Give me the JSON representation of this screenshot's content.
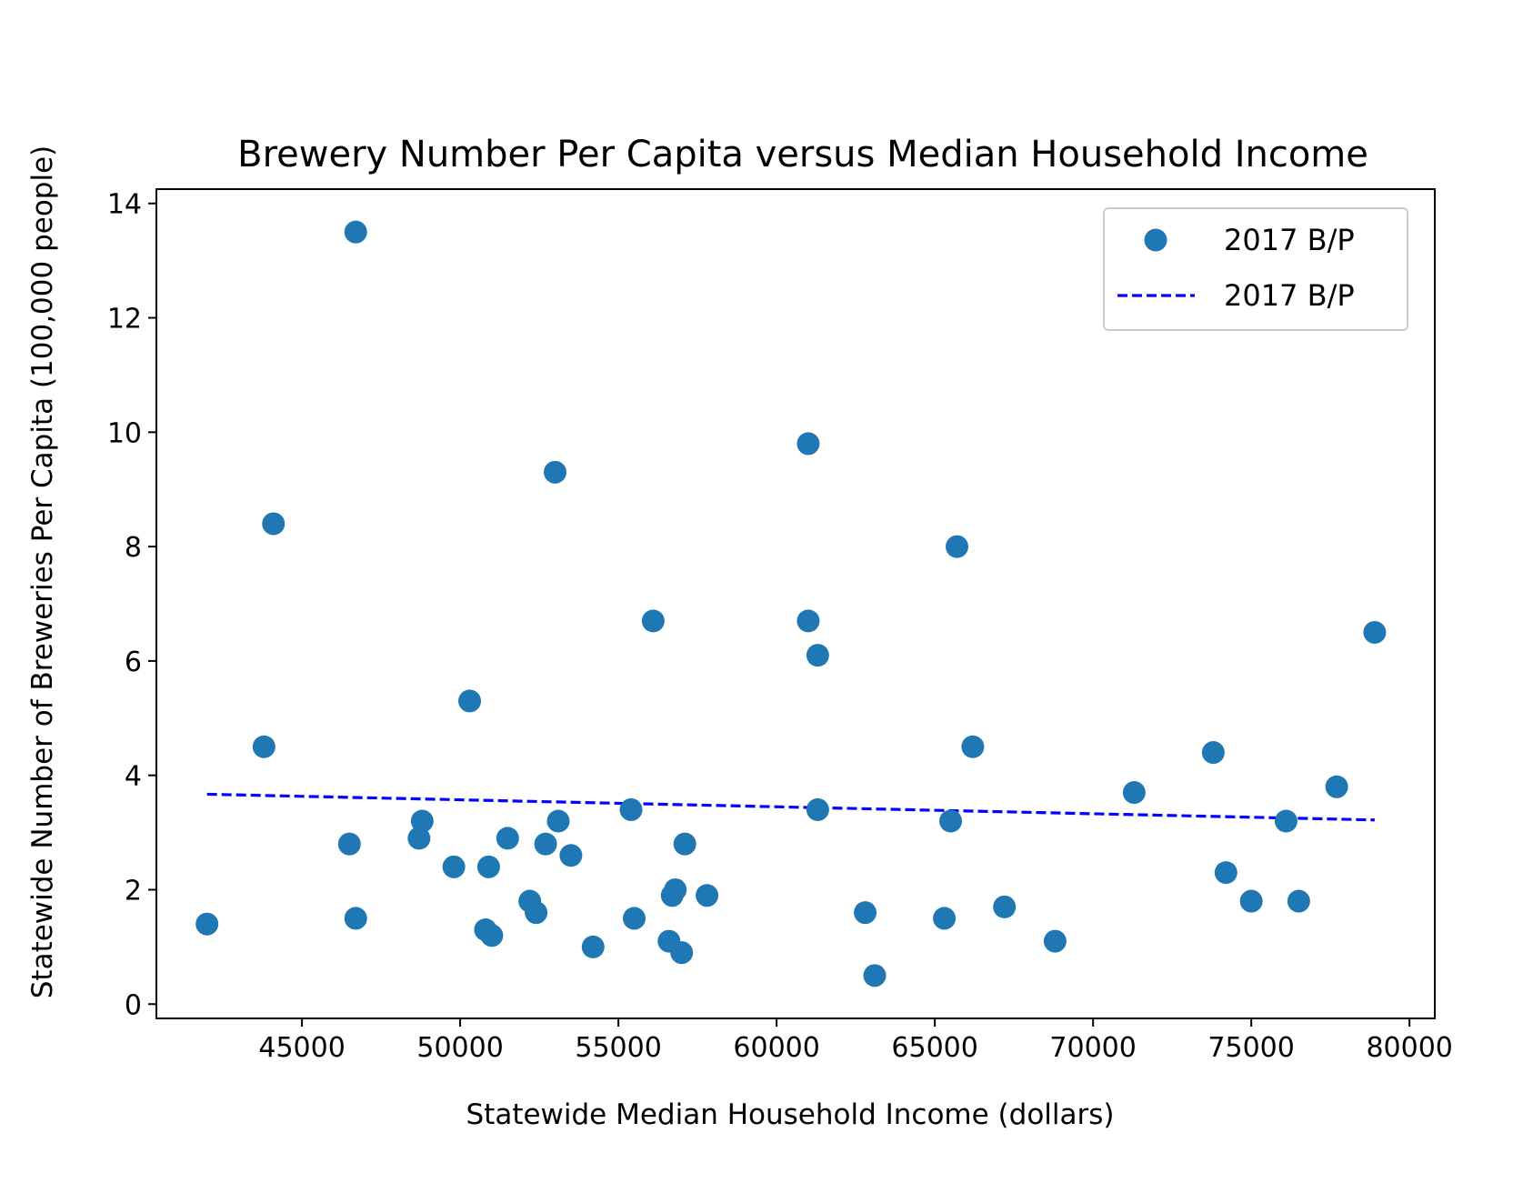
{
  "chart_data": {
    "type": "scatter",
    "title": "Brewery Number Per Capita versus Median Household Income",
    "xlabel": "Statewide Median Household Income (dollars)",
    "ylabel": "Statewide Number of Breweries Per Capita (100,000 people)",
    "xlim": [
      40400,
      80800
    ],
    "ylim": [
      -0.25,
      14.25
    ],
    "xticks": [
      45000,
      50000,
      55000,
      60000,
      65000,
      70000,
      75000,
      80000
    ],
    "xtick_labels": [
      "45000",
      "50000",
      "55000",
      "60000",
      "65000",
      "70000",
      "75000",
      "80000"
    ],
    "yticks": [
      0,
      2,
      4,
      6,
      8,
      10,
      12,
      14
    ],
    "ytick_labels": [
      "0",
      "2",
      "4",
      "6",
      "8",
      "10",
      "12",
      "14"
    ],
    "grid": false,
    "legend": "top-right",
    "colors": {
      "points": "#1f77b4",
      "trendline": "#0000ff"
    },
    "series": [
      {
        "name": "2017 B/P",
        "type": "scatter",
        "points": [
          [
            42000,
            1.4
          ],
          [
            43800,
            4.5
          ],
          [
            44100,
            8.4
          ],
          [
            46500,
            2.8
          ],
          [
            46700,
            13.5
          ],
          [
            46700,
            1.5
          ],
          [
            48700,
            2.9
          ],
          [
            48800,
            3.2
          ],
          [
            49800,
            2.4
          ],
          [
            50300,
            5.3
          ],
          [
            50800,
            1.3
          ],
          [
            50900,
            2.4
          ],
          [
            51000,
            1.2
          ],
          [
            51500,
            2.9
          ],
          [
            52200,
            1.8
          ],
          [
            52400,
            1.6
          ],
          [
            52700,
            2.8
          ],
          [
            53000,
            9.3
          ],
          [
            53100,
            3.2
          ],
          [
            53500,
            2.6
          ],
          [
            54200,
            1.0
          ],
          [
            55400,
            3.4
          ],
          [
            55500,
            1.5
          ],
          [
            56100,
            6.7
          ],
          [
            56600,
            1.1
          ],
          [
            56700,
            1.9
          ],
          [
            56800,
            2.0
          ],
          [
            57000,
            0.9
          ],
          [
            57100,
            2.8
          ],
          [
            57800,
            1.9
          ],
          [
            61000,
            6.7
          ],
          [
            61000,
            9.8
          ],
          [
            61300,
            6.1
          ],
          [
            61300,
            3.4
          ],
          [
            62800,
            1.6
          ],
          [
            63100,
            0.5
          ],
          [
            65300,
            1.5
          ],
          [
            65500,
            3.2
          ],
          [
            65700,
            8.0
          ],
          [
            66200,
            4.5
          ],
          [
            67200,
            1.7
          ],
          [
            68800,
            1.1
          ],
          [
            71300,
            3.7
          ],
          [
            73800,
            4.4
          ],
          [
            74200,
            2.3
          ],
          [
            75000,
            1.8
          ],
          [
            76100,
            3.2
          ],
          [
            76500,
            1.8
          ],
          [
            77700,
            3.8
          ],
          [
            78900,
            6.5
          ]
        ]
      },
      {
        "name": "2017 B/P",
        "type": "line",
        "style": "dashed",
        "points": [
          [
            42000,
            3.67
          ],
          [
            78900,
            3.22
          ]
        ]
      }
    ]
  }
}
